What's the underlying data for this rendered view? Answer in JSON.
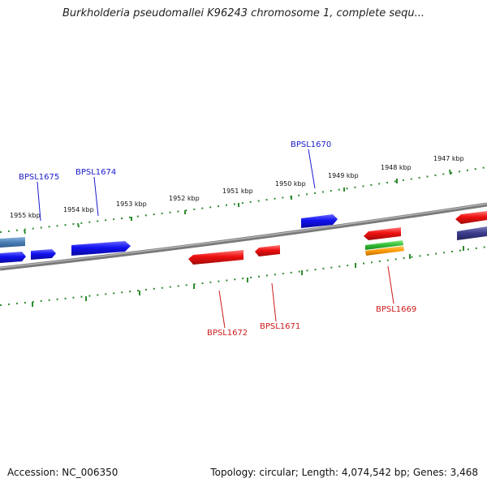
{
  "title": "Burkholderia pseudomallei K96243 chromosome 1, complete sequ...",
  "accession": "Accession: NC_006350",
  "summary": "Topology: circular; Length: 4,074,542 bp; Genes: 3,468",
  "colors": {
    "backbone": "#7a7a7a",
    "ticks": "#2e8b2e",
    "forward_gene": "#1010ee",
    "reverse_gene": "#ee1010",
    "forward_label": "#1a1acc",
    "reverse_label": "#cc1a1a",
    "steelblue_gene": "#4a7fb5",
    "navy_gene": "#3a3a8a",
    "green_gene": "#33bb33",
    "orange_gene": "#ff9900"
  },
  "scale_labels": [
    "1955 kbp",
    "1954 kbp",
    "1953 kbp",
    "1952 kbp",
    "1951 kbp",
    "1950 kbp",
    "1949 kbp",
    "1948 kbp",
    "1947 kbp"
  ],
  "gene_labels": {
    "BPSL1675": "BPSL1675",
    "BPSL1674": "BPSL1674",
    "BPSL1670": "BPSL1670",
    "BPSL1672": "BPSL1672",
    "BPSL1671": "BPSL1671",
    "BPSL1669": "BPSL1669"
  }
}
